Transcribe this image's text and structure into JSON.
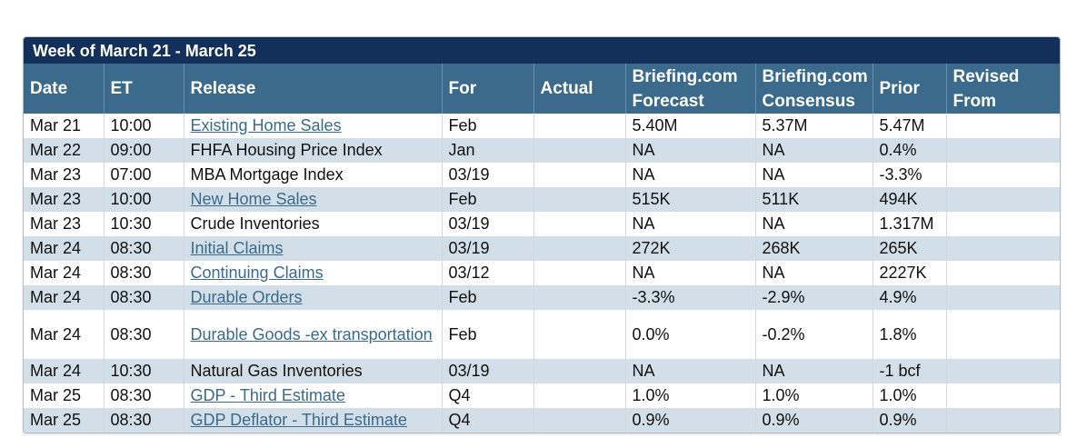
{
  "week_title": "Week of March 21 - March 25",
  "headers": {
    "date": "Date",
    "et": "ET",
    "release": "Release",
    "for": "For",
    "actual": "Actual",
    "forecast_1": "Briefing.com",
    "forecast_2": "Forecast",
    "consensus_1": "Briefing.com",
    "consensus_2": "Consensus",
    "prior": "Prior",
    "revised_1": "Revised",
    "revised_2": "From"
  },
  "rows": [
    {
      "date": "Mar 21",
      "et": "10:00",
      "release": "Existing Home Sales",
      "link": true,
      "for": "Feb",
      "actual": "",
      "forecast": "5.40M",
      "consensus": "5.37M",
      "prior": "5.47M",
      "revised": ""
    },
    {
      "date": "Mar 22",
      "et": "09:00",
      "release": "FHFA Housing Price Index",
      "link": false,
      "for": "Jan",
      "actual": "",
      "forecast": "NA",
      "consensus": "NA",
      "prior": "0.4%",
      "revised": ""
    },
    {
      "date": "Mar 23",
      "et": "07:00",
      "release": "MBA Mortgage Index",
      "link": false,
      "for": "03/19",
      "actual": "",
      "forecast": "NA",
      "consensus": "NA",
      "prior": "-3.3%",
      "revised": ""
    },
    {
      "date": "Mar 23",
      "et": "10:00",
      "release": "New Home Sales",
      "link": true,
      "for": "Feb",
      "actual": "",
      "forecast": "515K",
      "consensus": "511K",
      "prior": "494K",
      "revised": ""
    },
    {
      "date": "Mar 23",
      "et": "10:30",
      "release": "Crude Inventories",
      "link": false,
      "for": "03/19",
      "actual": "",
      "forecast": "NA",
      "consensus": "NA",
      "prior": "1.317M",
      "revised": ""
    },
    {
      "date": "Mar 24",
      "et": "08:30",
      "release": "Initial Claims",
      "link": true,
      "for": "03/19",
      "actual": "",
      "forecast": "272K",
      "consensus": "268K",
      "prior": "265K",
      "revised": ""
    },
    {
      "date": "Mar 24",
      "et": "08:30",
      "release": "Continuing Claims",
      "link": true,
      "for": "03/12",
      "actual": "",
      "forecast": "NA",
      "consensus": "NA",
      "prior": "2227K",
      "revised": ""
    },
    {
      "date": "Mar 24",
      "et": "08:30",
      "release": "Durable Orders",
      "link": true,
      "for": "Feb",
      "actual": "",
      "forecast": "-3.3%",
      "consensus": "-2.9%",
      "prior": "4.9%",
      "revised": ""
    },
    {
      "date": "Mar 24",
      "et": "08:30",
      "release": "Durable Goods -ex transportation",
      "link": true,
      "for": "Feb",
      "actual": "",
      "forecast": "0.0%",
      "consensus": "-0.2%",
      "prior": "1.8%",
      "revised": ""
    },
    {
      "date": "Mar 24",
      "et": "10:30",
      "release": "Natural Gas Inventories",
      "link": false,
      "for": "03/19",
      "actual": "",
      "forecast": "NA",
      "consensus": "NA",
      "prior": "-1 bcf",
      "revised": ""
    },
    {
      "date": "Mar 25",
      "et": "08:30",
      "release": "GDP - Third Estimate",
      "link": true,
      "for": "Q4",
      "actual": "",
      "forecast": "1.0%",
      "consensus": "1.0%",
      "prior": "1.0%",
      "revised": ""
    },
    {
      "date": "Mar 25",
      "et": "08:30",
      "release": "GDP Deflator - Third Estimate",
      "link": true,
      "for": "Q4",
      "actual": "",
      "forecast": "0.9%",
      "consensus": "0.9%",
      "prior": "0.9%",
      "revised": ""
    }
  ]
}
